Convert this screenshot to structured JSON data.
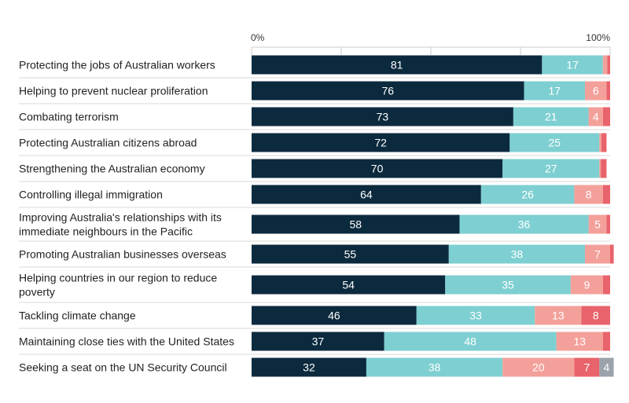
{
  "chart_data": {
    "type": "bar",
    "orientation": "horizontal",
    "stacked": true,
    "x_ticks": [
      "0%",
      "100%"
    ],
    "xlim": [
      0,
      100
    ],
    "categories": [
      [
        "Protecting the jobs of Australian workers"
      ],
      [
        "Helping to prevent nuclear proliferation"
      ],
      [
        "Combating terrorism"
      ],
      [
        "Protecting Australian citizens abroad"
      ],
      [
        "Strengthening the Australian economy"
      ],
      [
        "Controlling illegal immigration"
      ],
      [
        "Improving Australia's relationships with its",
        "immediate neighbours in the Pacific"
      ],
      [
        "Promoting Australian businesses overseas"
      ],
      [
        "Helping countries in our region to reduce",
        "poverty"
      ],
      [
        "Tackling climate change"
      ],
      [
        "Maintaining close ties with the United States"
      ],
      [
        "Seeking a seat on the UN Security Council"
      ]
    ],
    "series": [
      {
        "color": "#0c2a3e",
        "values": [
          81,
          76,
          73,
          72,
          70,
          64,
          58,
          55,
          54,
          46,
          37,
          32
        ]
      },
      {
        "color": "#7ecfd1",
        "values": [
          17,
          17,
          21,
          25,
          27,
          26,
          36,
          38,
          35,
          33,
          48,
          38
        ]
      },
      {
        "color": "#f4a09a",
        "values": [
          1.2,
          6,
          4,
          0.6,
          0.4,
          8,
          5,
          7,
          9,
          13,
          13,
          20
        ]
      },
      {
        "color": "#e8636b",
        "values": [
          0.8,
          1,
          2,
          1.4,
          1.6,
          2,
          1,
          1,
          2,
          8,
          2,
          7
        ]
      },
      {
        "color": "#9aa3ab",
        "values": [
          0,
          0,
          0,
          0,
          0,
          0,
          0,
          0,
          0,
          0,
          0,
          4
        ]
      }
    ],
    "value_labels": [
      [
        "81",
        "17",
        "",
        "",
        ""
      ],
      [
        "76",
        "17",
        "6",
        "",
        ""
      ],
      [
        "73",
        "21",
        "4",
        "",
        ""
      ],
      [
        "72",
        "25",
        "",
        "",
        ""
      ],
      [
        "70",
        "27",
        "",
        "",
        ""
      ],
      [
        "64",
        "26",
        "8",
        "",
        ""
      ],
      [
        "58",
        "36",
        "5",
        "",
        ""
      ],
      [
        "55",
        "38",
        "7",
        "",
        ""
      ],
      [
        "54",
        "35",
        "9",
        "",
        ""
      ],
      [
        "46",
        "33",
        "13",
        "8",
        ""
      ],
      [
        "37",
        "48",
        "13",
        "",
        ""
      ],
      [
        "32",
        "38",
        "20",
        "7",
        "4"
      ]
    ],
    "grid": true
  }
}
